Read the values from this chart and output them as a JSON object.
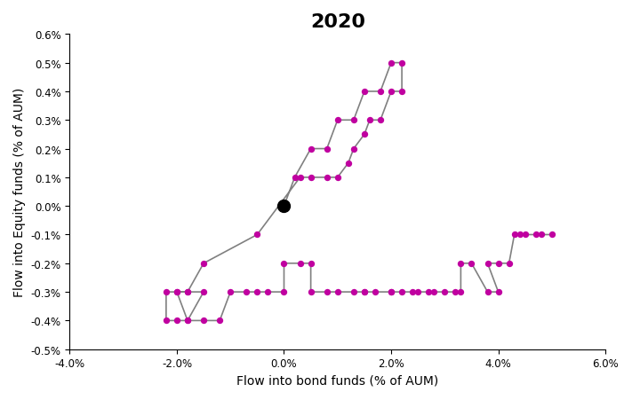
{
  "title": "2020",
  "xlabel": "Flow into bond funds (% of AUM)",
  "ylabel": "Flow into Equity funds (% of AUM)",
  "xlim": [
    -0.04,
    0.06
  ],
  "ylim": [
    -0.005,
    0.006
  ],
  "xticks": [
    -0.04,
    -0.02,
    0.0,
    0.02,
    0.04,
    0.06
  ],
  "yticks": [
    -0.005,
    -0.004,
    -0.003,
    -0.002,
    -0.001,
    0.0,
    0.001,
    0.002,
    0.003,
    0.004,
    0.005,
    0.006
  ],
  "line_color": "#808080",
  "dot_color": "#C000A0",
  "start_dot_color": "#000000",
  "points": [
    [
      0.0,
      0.0
    ],
    [
      0.002,
      0.001
    ],
    [
      0.005,
      0.002
    ],
    [
      0.008,
      0.002
    ],
    [
      0.01,
      0.003
    ],
    [
      0.013,
      0.003
    ],
    [
      0.015,
      0.004
    ],
    [
      0.018,
      0.004
    ],
    [
      0.02,
      0.005
    ],
    [
      0.022,
      0.005
    ],
    [
      0.022,
      0.004
    ],
    [
      0.02,
      0.004
    ],
    [
      0.018,
      0.003
    ],
    [
      0.016,
      0.003
    ],
    [
      0.015,
      0.0025
    ],
    [
      0.013,
      0.002
    ],
    [
      0.012,
      0.0015
    ],
    [
      0.01,
      0.001
    ],
    [
      0.008,
      0.001
    ],
    [
      0.005,
      0.001
    ],
    [
      0.003,
      0.001
    ],
    [
      -0.005,
      -0.001
    ],
    [
      -0.015,
      -0.002
    ],
    [
      -0.018,
      -0.003
    ],
    [
      -0.02,
      -0.003
    ],
    [
      -0.022,
      -0.003
    ],
    [
      -0.022,
      -0.004
    ],
    [
      -0.02,
      -0.004
    ],
    [
      -0.018,
      -0.004
    ],
    [
      -0.02,
      -0.003
    ],
    [
      -0.018,
      -0.003
    ],
    [
      -0.015,
      -0.003
    ],
    [
      -0.018,
      -0.004
    ],
    [
      -0.015,
      -0.004
    ],
    [
      -0.012,
      -0.004
    ],
    [
      -0.01,
      -0.003
    ],
    [
      -0.007,
      -0.003
    ],
    [
      -0.005,
      -0.003
    ],
    [
      -0.003,
      -0.003
    ],
    [
      0.0,
      -0.003
    ],
    [
      0.0,
      -0.002
    ],
    [
      0.003,
      -0.002
    ],
    [
      0.005,
      -0.002
    ],
    [
      0.005,
      -0.003
    ],
    [
      0.008,
      -0.003
    ],
    [
      0.01,
      -0.003
    ],
    [
      0.013,
      -0.003
    ],
    [
      0.015,
      -0.003
    ],
    [
      0.015,
      -0.003
    ],
    [
      0.017,
      -0.003
    ],
    [
      0.02,
      -0.003
    ],
    [
      0.02,
      -0.003
    ],
    [
      0.022,
      -0.003
    ],
    [
      0.024,
      -0.003
    ],
    [
      0.025,
      -0.003
    ],
    [
      0.027,
      -0.003
    ],
    [
      0.028,
      -0.003
    ],
    [
      0.03,
      -0.003
    ],
    [
      0.032,
      -0.003
    ],
    [
      0.033,
      -0.003
    ],
    [
      0.033,
      -0.002
    ],
    [
      0.035,
      -0.002
    ],
    [
      0.038,
      -0.003
    ],
    [
      0.04,
      -0.003
    ],
    [
      0.038,
      -0.002
    ],
    [
      0.04,
      -0.002
    ],
    [
      0.042,
      -0.002
    ],
    [
      0.043,
      -0.001
    ],
    [
      0.044,
      -0.001
    ],
    [
      0.045,
      -0.001
    ],
    [
      0.047,
      -0.001
    ],
    [
      0.048,
      -0.001
    ],
    [
      0.05,
      -0.001
    ]
  ]
}
